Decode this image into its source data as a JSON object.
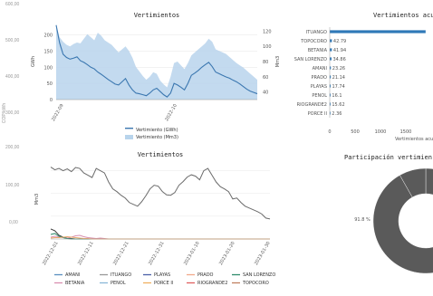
{
  "background_axis": {
    "ticks": [
      "600,00",
      "500,00",
      "400,00",
      "300,00",
      "200,00",
      "100,00",
      "0,00"
    ],
    "label": "COP/kWh"
  },
  "chart_data": [
    {
      "type": "area",
      "title": "Vertimientos",
      "ylabel": "GWh",
      "y2label": "Mm3",
      "x_ticks": [
        "2022-09",
        "2022-10"
      ],
      "y_ticks": [
        0,
        50,
        100,
        150,
        200
      ],
      "y2_ticks": [
        40,
        60,
        80,
        100,
        120
      ],
      "ylim": [
        0,
        235
      ],
      "y2lim": [
        30,
        130
      ],
      "series": [
        {
          "name": "Vertimiento (GWh)",
          "axis": "left",
          "color": "#3b77b0",
          "values": [
            230,
            175,
            140,
            130,
            125,
            128,
            132,
            120,
            115,
            108,
            100,
            95,
            85,
            78,
            70,
            62,
            55,
            48,
            45,
            55,
            65,
            45,
            30,
            20,
            18,
            15,
            12,
            20,
            30,
            35,
            25,
            15,
            8,
            20,
            50,
            45,
            38,
            30,
            50,
            75,
            82,
            90,
            100,
            108,
            115,
            102,
            85,
            80,
            75,
            70,
            66,
            60,
            55,
            48,
            40,
            32,
            26,
            22,
            18
          ]
        },
        {
          "name": "Vertimiento (Mm3)",
          "axis": "right",
          "color": "#b8d4ec",
          "values": [
            128,
            112,
            106,
            102,
            100,
            103,
            105,
            104,
            110,
            116,
            112,
            108,
            118,
            114,
            108,
            105,
            102,
            97,
            92,
            96,
            100,
            94,
            85,
            73,
            67,
            61,
            56,
            60,
            66,
            64,
            55,
            50,
            46,
            60,
            78,
            80,
            75,
            70,
            78,
            88,
            92,
            96,
            100,
            104,
            110,
            106,
            96,
            94,
            92,
            90,
            86,
            82,
            78,
            75,
            72,
            68,
            64,
            60,
            56
          ]
        }
      ]
    },
    {
      "type": "bar",
      "title": "Vertimientos acum",
      "orientation": "horizontal",
      "categories": [
        "ITUANGO",
        "TOPOCORO",
        "BETANIA",
        "SAN LORENZO",
        "AMANI",
        "PRADO",
        "PLAYAS",
        "PENOL",
        "RIOGRANDE2",
        "PORCE II"
      ],
      "values": [
        1890,
        42.79,
        41.94,
        34.86,
        23.26,
        21.14,
        17.74,
        16.1,
        15.62,
        2.36
      ],
      "labels": [
        "",
        "42.79",
        "41.94",
        "34.86",
        "23.26",
        "21.14",
        "17.74",
        "16.1",
        "15.62",
        "2.36"
      ],
      "x_ticks": [
        0,
        500,
        1000,
        1500
      ],
      "xlabel": "Vertimientos acu",
      "color": "#2f79b8"
    },
    {
      "type": "line",
      "title": "Vertimientos",
      "ylabel": "Mm3",
      "x_ticks": [
        "2022-12-01",
        "2022-12-11",
        "2022-12-21",
        "2022-12-31",
        "2023-01-10",
        "2023-01-20",
        "2023-01-30"
      ],
      "y_ticks": [
        0,
        50,
        100,
        150
      ],
      "ylim": [
        0,
        175
      ],
      "series": [
        {
          "name": "ITUANGO",
          "color": "#6b6b6b",
          "values": [
            158,
            152,
            155,
            150,
            154,
            148,
            157,
            155,
            145,
            140,
            135,
            155,
            150,
            145,
            125,
            110,
            104,
            96,
            90,
            80,
            76,
            72,
            82,
            95,
            110,
            118,
            116,
            104,
            97,
            96,
            102,
            118,
            126,
            136,
            141,
            138,
            130,
            150,
            155,
            140,
            125,
            115,
            110,
            104,
            88,
            90,
            80,
            72,
            68,
            64,
            60,
            55,
            46,
            44
          ]
        },
        {
          "name": "AMANI",
          "color": "#3a3a3a",
          "values": [
            22,
            18,
            8,
            4,
            2,
            1,
            0,
            0,
            0,
            0,
            0,
            0,
            0,
            0,
            0,
            0,
            0,
            0,
            0,
            0,
            0,
            0,
            0,
            0,
            0,
            0,
            0,
            0,
            0,
            0,
            0,
            0,
            0,
            0,
            0,
            0,
            0,
            0,
            0,
            0,
            0,
            0,
            0,
            0,
            0,
            0,
            0,
            0,
            0,
            0,
            0,
            0,
            0,
            0
          ]
        },
        {
          "name": "BETANIA",
          "color": "#d98fb0",
          "values": [
            4,
            6,
            5,
            3,
            2,
            4,
            7,
            8,
            5,
            3,
            2,
            1,
            2,
            1,
            0,
            0,
            0,
            0,
            0,
            0,
            0,
            0,
            0,
            0,
            0,
            0,
            0,
            0,
            0,
            0,
            0,
            0,
            0,
            0,
            0,
            0,
            0,
            0,
            0,
            0,
            0,
            0,
            0,
            0,
            0,
            0,
            0,
            0,
            0,
            0,
            0,
            0,
            0,
            0
          ]
        },
        {
          "name": "SAN LORENZO",
          "color": "#2e8b6b",
          "values": [
            10,
            12,
            6,
            3,
            1,
            0,
            0,
            0,
            0,
            0,
            0,
            0,
            0,
            0,
            0,
            0,
            0,
            0,
            0,
            0,
            0,
            0,
            0,
            0,
            0,
            0,
            0,
            0,
            0,
            0,
            0,
            0,
            0,
            0,
            0,
            0,
            0,
            0,
            0,
            0,
            0,
            0,
            0,
            0,
            0,
            0,
            0,
            0,
            0,
            0,
            0,
            0,
            0,
            0
          ]
        },
        {
          "name": "PRADO",
          "color": "#e8a86a",
          "values": [
            2,
            3,
            3,
            4,
            5,
            4,
            3,
            2,
            1,
            1,
            0,
            0,
            0,
            0,
            0,
            0,
            0,
            0,
            0,
            0,
            0,
            0,
            0,
            0,
            0,
            0,
            0,
            0,
            0,
            0,
            0,
            0,
            0,
            0,
            0,
            0,
            0,
            0,
            0,
            0,
            0,
            0,
            0,
            0,
            0,
            0,
            0,
            0,
            0,
            0,
            0,
            0,
            0,
            0
          ]
        }
      ],
      "legend": [
        "AMANI",
        "ITUANGO",
        "PLAYAS",
        "PRADO",
        "SAN LORENZO",
        "BETANIA",
        "PENOL",
        "PORCE II",
        "RIOGRANDE2",
        "TOPOCORO"
      ],
      "legend_colors": [
        "#5a8fc0",
        "#999999",
        "#4a5fa8",
        "#f2a98a",
        "#2e8b6b",
        "#d98fb0",
        "#8ab8d8",
        "#f0b060",
        "#e06060",
        "#c08060"
      ]
    },
    {
      "type": "pie",
      "title": "Participación vertimien",
      "slices": [
        {
          "label": "91.8 %",
          "value": 91.8,
          "color": "#5a5a5a"
        },
        {
          "label": "",
          "value": 8.2,
          "color": "#5a5a5a"
        }
      ]
    }
  ]
}
